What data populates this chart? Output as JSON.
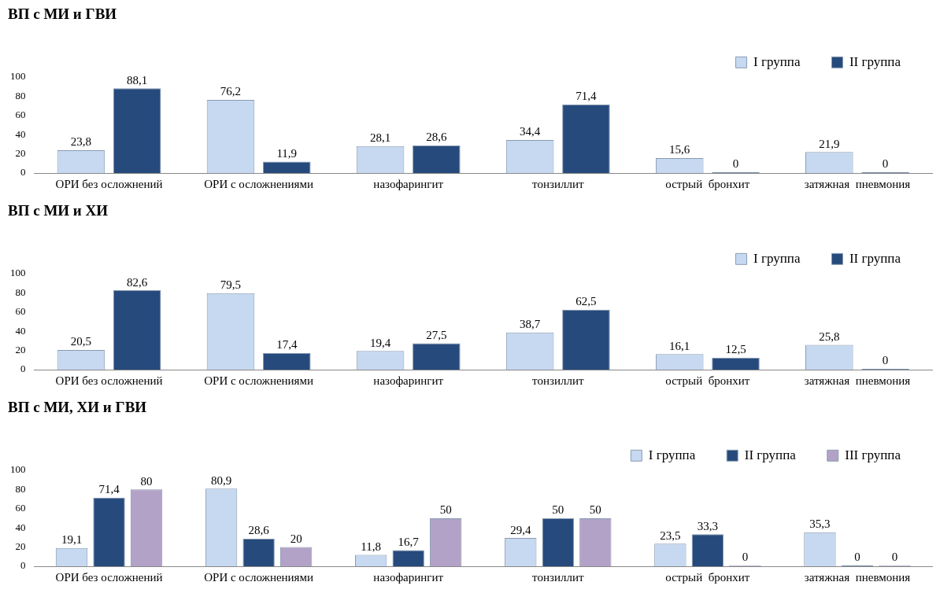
{
  "chart_data": [
    {
      "type": "bar",
      "title": "ВП с МИ и ГВИ",
      "categories": [
        "ОРИ без осложнений",
        "ОРИ с осложнениями",
        "назофарингит",
        "тонзиллит",
        "острый  бронхит",
        "затяжная  пневмония"
      ],
      "ylim": [
        0,
        100
      ],
      "yticks": [
        0,
        20,
        40,
        60,
        80,
        100
      ],
      "grid": false,
      "legend": "top right",
      "series": [
        {
          "name": "I группа",
          "color": "#c6d9f1",
          "values": [
            23.8,
            76.2,
            28.1,
            34.4,
            15.6,
            21.9
          ],
          "value_labels": [
            "23,8",
            "76,2",
            "28,1",
            "34,4",
            "15,6",
            "21,9"
          ]
        },
        {
          "name": "II группа",
          "color": "#264a7c",
          "values": [
            88.1,
            11.9,
            28.6,
            71.4,
            0,
            0
          ],
          "value_labels": [
            "88,1",
            "11,9",
            "28,6",
            "71,4",
            "0",
            "0"
          ]
        }
      ]
    },
    {
      "type": "bar",
      "title": "ВП с МИ и ХИ",
      "categories": [
        "ОРИ без осложнений",
        "ОРИ с осложнениями",
        "назофарингит",
        "тонзиллит",
        "острый  бронхит",
        "затяжная  пневмония"
      ],
      "ylim": [
        0,
        100
      ],
      "yticks": [
        0,
        20,
        40,
        60,
        80,
        100
      ],
      "grid": false,
      "legend": "top right",
      "series": [
        {
          "name": "I группа",
          "color": "#c6d9f1",
          "values": [
            20.5,
            79.5,
            19.4,
            38.7,
            16.1,
            25.8
          ],
          "value_labels": [
            "20,5",
            "79,5",
            "19,4",
            "38,7",
            "16,1",
            "25,8"
          ]
        },
        {
          "name": "II группа",
          "color": "#264a7c",
          "values": [
            82.6,
            17.4,
            27.5,
            62.5,
            12.5,
            0
          ],
          "value_labels": [
            "82,6",
            "17,4",
            "27,5",
            "62,5",
            "12,5",
            "0"
          ]
        }
      ]
    },
    {
      "type": "bar",
      "title": "ВП с МИ, ХИ и ГВИ",
      "categories": [
        "ОРИ без осложнений",
        "ОРИ с осложнениями",
        "назофарингит",
        "тонзиллит",
        "острый  бронхит",
        "затяжная  пневмония"
      ],
      "ylim": [
        0,
        100
      ],
      "yticks": [
        0,
        20,
        40,
        60,
        80,
        100
      ],
      "grid": false,
      "legend": "top right",
      "series": [
        {
          "name": "I группа",
          "color": "#c6d9f1",
          "values": [
            19.1,
            80.9,
            11.8,
            29.4,
            23.5,
            35.3
          ],
          "value_labels": [
            "19,1",
            "80,9",
            "11,8",
            "29,4",
            "23,5",
            "35,3"
          ]
        },
        {
          "name": "II группа",
          "color": "#264a7c",
          "values": [
            71.4,
            28.6,
            16.7,
            50,
            33.3,
            0
          ],
          "value_labels": [
            "71,4",
            "28,6",
            "16,7",
            "50",
            "33,3",
            "0"
          ]
        },
        {
          "name": "III группа",
          "color": "#b3a2c7",
          "values": [
            80,
            20,
            50,
            50,
            0,
            0
          ],
          "value_labels": [
            "80",
            "20",
            "50",
            "50",
            "0",
            "0"
          ]
        }
      ]
    }
  ]
}
